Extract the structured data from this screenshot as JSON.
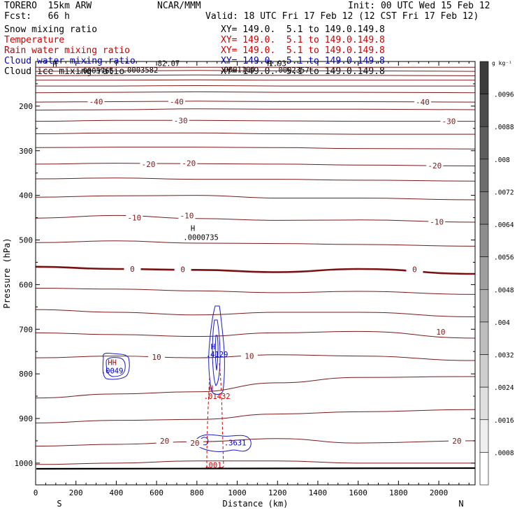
{
  "header": {
    "model": "TORERO  15km ARW",
    "org": "NCAR/MMM",
    "init": "Init: 00 UTC Wed 15 Feb 12",
    "fcst": "Fcst:   66 h",
    "valid": "Valid: 18 UTC Fri 17 Feb 12 (12 CST Fri 17 Feb 12)"
  },
  "fields": [
    {
      "name": "Snow mixing ratio",
      "xy": "XY= 149.0.  5.1 to 149.0.149.8",
      "color": "#000000"
    },
    {
      "name": "Temperature",
      "xy": "XY= 149.0.  5.1 to 149.0.149.8",
      "color": "#cc0000"
    },
    {
      "name": "Rain water mixing ratio",
      "xy": "XY= 149.0.  5.1 to 149.0.149.8",
      "color": "#cc0000"
    },
    {
      "name": "Cloud water mixing ratio",
      "xy": "XY= 149.0.  5.1 to 149.0.149.8",
      "color": "#0000cc"
    },
    {
      "name": "Cloud ice mixing ratio",
      "xy": "XY= 149.0.  5.1 to 149.0.149.8",
      "color": "#000000"
    }
  ],
  "colors": {
    "temperature": "#7a1a1a",
    "zero_isotherm": "#7a1010",
    "cloud_water": "#1a1acc",
    "rain": "#cc0000",
    "snow": "#000000"
  },
  "chart_data": {
    "type": "contour",
    "xlabel": "Distance (km)",
    "ylabel": "Pressure (hPa)",
    "x_ticks": [
      0,
      200,
      400,
      600,
      800,
      1000,
      1200,
      1400,
      1600,
      1800,
      2000
    ],
    "y_ticks": [
      200,
      300,
      400,
      500,
      600,
      700,
      800,
      900,
      1000
    ],
    "xlim": [
      0,
      2180
    ],
    "ylim": [
      1045,
      100
    ],
    "end_labels": {
      "left": "S",
      "right": "N"
    },
    "temperature_contours": [
      {
        "value": -50,
        "x": [
          0,
          400,
          800,
          1200,
          1600,
          2180
        ],
        "p": [
          113,
          113,
          113,
          113,
          113,
          113
        ]
      },
      {
        "value": -50,
        "x": [
          0,
          400,
          800,
          1200,
          1600,
          2180
        ],
        "p": [
          122,
          121,
          120,
          121,
          121,
          122
        ]
      },
      {
        "value": -50,
        "x": [
          0,
          400,
          800,
          1200,
          1600,
          2180
        ],
        "p": [
          132,
          131,
          130,
          131,
          131,
          132
        ]
      },
      {
        "value": -50,
        "x": [
          0,
          400,
          800,
          1200,
          1600,
          2180
        ],
        "p": [
          142,
          142,
          141,
          142,
          142,
          142
        ]
      },
      {
        "value": -50,
        "x": [
          0,
          400,
          800,
          1200,
          1600,
          2180
        ],
        "p": [
          155,
          155,
          154,
          155,
          155,
          155
        ]
      },
      {
        "value": -50,
        "x": [
          0,
          400,
          800,
          1200,
          1600,
          2180
        ],
        "p": [
          170,
          169,
          168,
          169,
          169,
          170
        ]
      },
      {
        "value": -40,
        "x": [
          0,
          400,
          800,
          1200,
          1600,
          2180
        ],
        "p": [
          191,
          190,
          189,
          190,
          190,
          191
        ]
      },
      {
        "value": -40,
        "x": [
          0,
          400,
          800,
          1200,
          1600,
          2180
        ],
        "p": [
          209,
          208,
          206,
          207,
          207,
          208
        ]
      },
      {
        "value": -30,
        "x": [
          0,
          400,
          800,
          1200,
          1600,
          2180
        ],
        "p": [
          234,
          232,
          232,
          233,
          234,
          234
        ]
      },
      {
        "value": -30,
        "x": [
          0,
          400,
          800,
          1200,
          1600,
          2180
        ],
        "p": [
          262,
          260,
          260,
          262,
          263,
          263
        ]
      },
      {
        "value": -20,
        "x": [
          0,
          400,
          800,
          1200,
          1600,
          2180
        ],
        "p": [
          293,
          292,
          292,
          293,
          295,
          296
        ]
      },
      {
        "value": -20,
        "x": [
          0,
          400,
          800,
          1200,
          1600,
          2180
        ],
        "p": [
          330,
          328,
          329,
          330,
          332,
          334
        ]
      },
      {
        "value": -10,
        "x": [
          0,
          400,
          800,
          1200,
          1600,
          2180
        ],
        "p": [
          363,
          361,
          364,
          364,
          366,
          368
        ]
      },
      {
        "value": -10,
        "x": [
          0,
          400,
          800,
          1200,
          1600,
          2180
        ],
        "p": [
          404,
          401,
          400,
          406,
          406,
          410
        ]
      },
      {
        "value": -10,
        "x": [
          0,
          400,
          800,
          1200,
          1600,
          2180
        ],
        "p": [
          451,
          445,
          452,
          456,
          455,
          460
        ]
      },
      {
        "value": -10,
        "x": [
          0,
          400,
          800,
          1200,
          1600,
          2180
        ],
        "p": [
          506,
          502,
          507,
          508,
          510,
          514
        ]
      },
      {
        "value": 0,
        "x": [
          0,
          400,
          800,
          1200,
          1600,
          2180
        ],
        "p": [
          560,
          565,
          567,
          572,
          565,
          576
        ]
      },
      {
        "value": 0,
        "x": [
          0,
          400,
          800,
          1200,
          1600,
          2180
        ],
        "p": [
          608,
          610,
          614,
          618,
          615,
          622
        ]
      },
      {
        "value": 0,
        "x": [
          0,
          400,
          800,
          1200,
          1600,
          2180
        ],
        "p": [
          656,
          662,
          668,
          662,
          662,
          672
        ]
      },
      {
        "value": 10,
        "x": [
          0,
          400,
          800,
          1200,
          1600,
          2180
        ],
        "p": [
          708,
          712,
          716,
          708,
          705,
          720
        ]
      },
      {
        "value": 10,
        "x": [
          0,
          400,
          800,
          1200,
          1600,
          2180
        ],
        "p": [
          764,
          760,
          764,
          757,
          760,
          770
        ]
      },
      {
        "value": 10,
        "x": [
          0,
          400,
          800,
          1200,
          1600,
          2180
        ],
        "p": [
          854,
          845,
          840,
          820,
          808,
          806
        ]
      },
      {
        "value": 20,
        "x": [
          0,
          400,
          800,
          1200,
          1600,
          2180
        ],
        "p": [
          910,
          904,
          902,
          890,
          885,
          880
        ]
      },
      {
        "value": 20,
        "x": [
          0,
          400,
          800,
          1200,
          1600,
          2180
        ],
        "p": [
          962,
          958,
          952,
          945,
          955,
          950
        ]
      },
      {
        "value": 20,
        "x": [
          0,
          400,
          800,
          1200,
          1600,
          2180
        ],
        "p": [
          1003,
          1000,
          995,
          995,
          1000,
          1000
        ]
      }
    ],
    "contour_labels": [
      {
        "text": "-40",
        "x": 300,
        "p": 190,
        "color": "#7a1a1a"
      },
      {
        "text": "-40",
        "x": 700,
        "p": 190,
        "color": "#7a1a1a"
      },
      {
        "text": "-40",
        "x": 1920,
        "p": 191,
        "color": "#7a1a1a"
      },
      {
        "text": "-30",
        "x": 720,
        "p": 232,
        "color": "#7a1a1a"
      },
      {
        "text": "-30",
        "x": 2050,
        "p": 234,
        "color": "#7a1a1a"
      },
      {
        "text": "-20",
        "x": 560,
        "p": 330,
        "color": "#7a1a1a"
      },
      {
        "text": "-20",
        "x": 760,
        "p": 328,
        "color": "#7a1a1a"
      },
      {
        "text": "-20",
        "x": 1980,
        "p": 333,
        "color": "#7a1a1a"
      },
      {
        "text": "-10",
        "x": 490,
        "p": 450,
        "color": "#7a1a1a"
      },
      {
        "text": "-10",
        "x": 750,
        "p": 445,
        "color": "#7a1a1a"
      },
      {
        "text": "-10",
        "x": 1990,
        "p": 459,
        "color": "#7a1a1a"
      },
      {
        "text": "0",
        "x": 480,
        "p": 565,
        "color": "#7a1010"
      },
      {
        "text": "0",
        "x": 730,
        "p": 566,
        "color": "#7a1010"
      },
      {
        "text": "0",
        "x": 1880,
        "p": 566,
        "color": "#7a1010"
      },
      {
        "text": "10",
        "x": 600,
        "p": 762,
        "color": "#7a1a1a"
      },
      {
        "text": "10",
        "x": 1060,
        "p": 760,
        "color": "#7a1a1a"
      },
      {
        "text": "10",
        "x": 2010,
        "p": 706,
        "color": "#7a1a1a"
      },
      {
        "text": "20",
        "x": 640,
        "p": 950,
        "color": "#7a1a1a"
      },
      {
        "text": "20",
        "x": 790,
        "p": 955,
        "color": "#7a1a1a"
      },
      {
        "text": "20",
        "x": 2090,
        "p": 950,
        "color": "#7a1a1a"
      }
    ],
    "extrema_labels": [
      {
        "text": "H",
        "x": 780,
        "p": 480,
        "color": "#000000"
      },
      {
        "text": ".0000735",
        "x": 820,
        "p": 500,
        "color": "#000000"
      },
      {
        "text": "H",
        "x": 880,
        "p": 745,
        "color": "#0000cc"
      },
      {
        "text": ".4129",
        "x": 900,
        "p": 762,
        "color": "#0000cc"
      },
      {
        "text": "H",
        "x": 870,
        "p": 838,
        "color": "#cc0000"
      },
      {
        "text": ".01432",
        "x": 900,
        "p": 856,
        "color": "#cc0000"
      },
      {
        "text": "HH",
        "x": 380,
        "p": 780,
        "color": "#cc0000"
      },
      {
        "text": ".0049",
        "x": 380,
        "p": 799,
        "color": "#0000cc"
      },
      {
        "text": ".3631",
        "x": 990,
        "p": 960,
        "color": "#0000cc"
      },
      {
        "text": ".001",
        "x": 880,
        "p": 1010,
        "color": "#cc0000"
      },
      {
        "text": "82.07",
        "x": 660,
        "p": 110,
        "color": "#000000"
      },
      {
        "text": "H",
        "x": 95,
        "p": 112,
        "color": "#000000"
      },
      {
        "text": "H",
        "x": 1160,
        "p": 110,
        "color": "#000000"
      },
      {
        "text": "1.93",
        "x": 1200,
        "p": 110,
        "color": "#000000"
      },
      {
        "text": ".0005765",
        "x": 300,
        "p": 127,
        "color": "#000000"
      },
      {
        "text": ".0003582",
        "x": 520,
        "p": 125,
        "color": "#000000"
      },
      {
        "text": ".0001104",
        "x": 1000,
        "p": 124,
        "color": "#000000"
      },
      {
        "text": ".0002357",
        "x": 1270,
        "p": 125,
        "color": "#000000"
      }
    ],
    "colorbar": {
      "unit": "g kg⁻¹",
      "levels": [
        ".0096",
        ".0088",
        ".008",
        ".0072",
        ".0064",
        ".0056",
        ".0048",
        ".004",
        ".0032",
        ".0024",
        ".0016",
        ".0008"
      ]
    }
  }
}
